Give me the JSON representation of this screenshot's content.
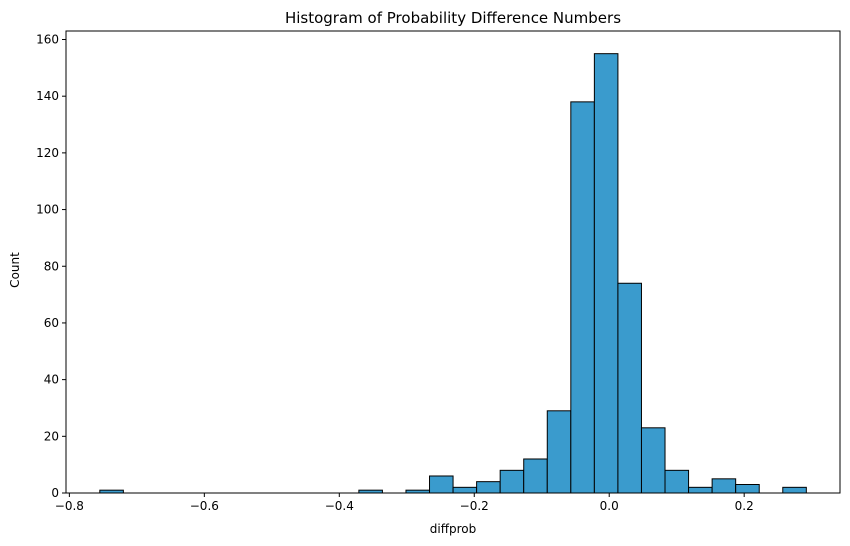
{
  "chart_data": {
    "type": "bar",
    "title": "Histogram of Probability Difference Numbers",
    "xlabel": "diffprob",
    "ylabel": "Count",
    "xlim": [
      -0.805,
      0.342
    ],
    "ylim": [
      0,
      163
    ],
    "xticks": [
      -0.8,
      -0.6,
      -0.4,
      -0.2,
      0.0,
      0.2
    ],
    "xtick_labels": [
      "−0.8",
      "−0.6",
      "−0.4",
      "−0.2",
      "0.0",
      "0.2"
    ],
    "yticks": [
      0,
      20,
      40,
      60,
      80,
      100,
      120,
      140,
      160
    ],
    "ytick_labels": [
      "0",
      "20",
      "40",
      "60",
      "80",
      "100",
      "120",
      "140",
      "160"
    ],
    "bin_width": 0.0349,
    "bins": [
      {
        "x0": -0.7549,
        "count": 1
      },
      {
        "x0": -0.72,
        "count": 0
      },
      {
        "x0": -0.6851,
        "count": 0
      },
      {
        "x0": -0.6502,
        "count": 0
      },
      {
        "x0": -0.6153,
        "count": 0
      },
      {
        "x0": -0.5804,
        "count": 0
      },
      {
        "x0": -0.5455,
        "count": 0
      },
      {
        "x0": -0.5106,
        "count": 0
      },
      {
        "x0": -0.4757,
        "count": 0
      },
      {
        "x0": -0.4408,
        "count": 0
      },
      {
        "x0": -0.4059,
        "count": 0
      },
      {
        "x0": -0.371,
        "count": 1
      },
      {
        "x0": -0.3361,
        "count": 0
      },
      {
        "x0": -0.3012,
        "count": 1
      },
      {
        "x0": -0.2663,
        "count": 6
      },
      {
        "x0": -0.2314,
        "count": 2
      },
      {
        "x0": -0.1965,
        "count": 4
      },
      {
        "x0": -0.1616,
        "count": 8
      },
      {
        "x0": -0.1267,
        "count": 12
      },
      {
        "x0": -0.0918,
        "count": 29
      },
      {
        "x0": -0.0569,
        "count": 138
      },
      {
        "x0": -0.022,
        "count": 155
      },
      {
        "x0": 0.0129,
        "count": 74
      },
      {
        "x0": 0.0478,
        "count": 23
      },
      {
        "x0": 0.0827,
        "count": 8
      },
      {
        "x0": 0.1176,
        "count": 2
      },
      {
        "x0": 0.1525,
        "count": 5
      },
      {
        "x0": 0.1874,
        "count": 3
      },
      {
        "x0": 0.2223,
        "count": 0
      },
      {
        "x0": 0.2572,
        "count": 2
      }
    ],
    "bar_color": "#3a9bcd",
    "edge_color": "#000000",
    "grid": false,
    "legend": "none"
  }
}
